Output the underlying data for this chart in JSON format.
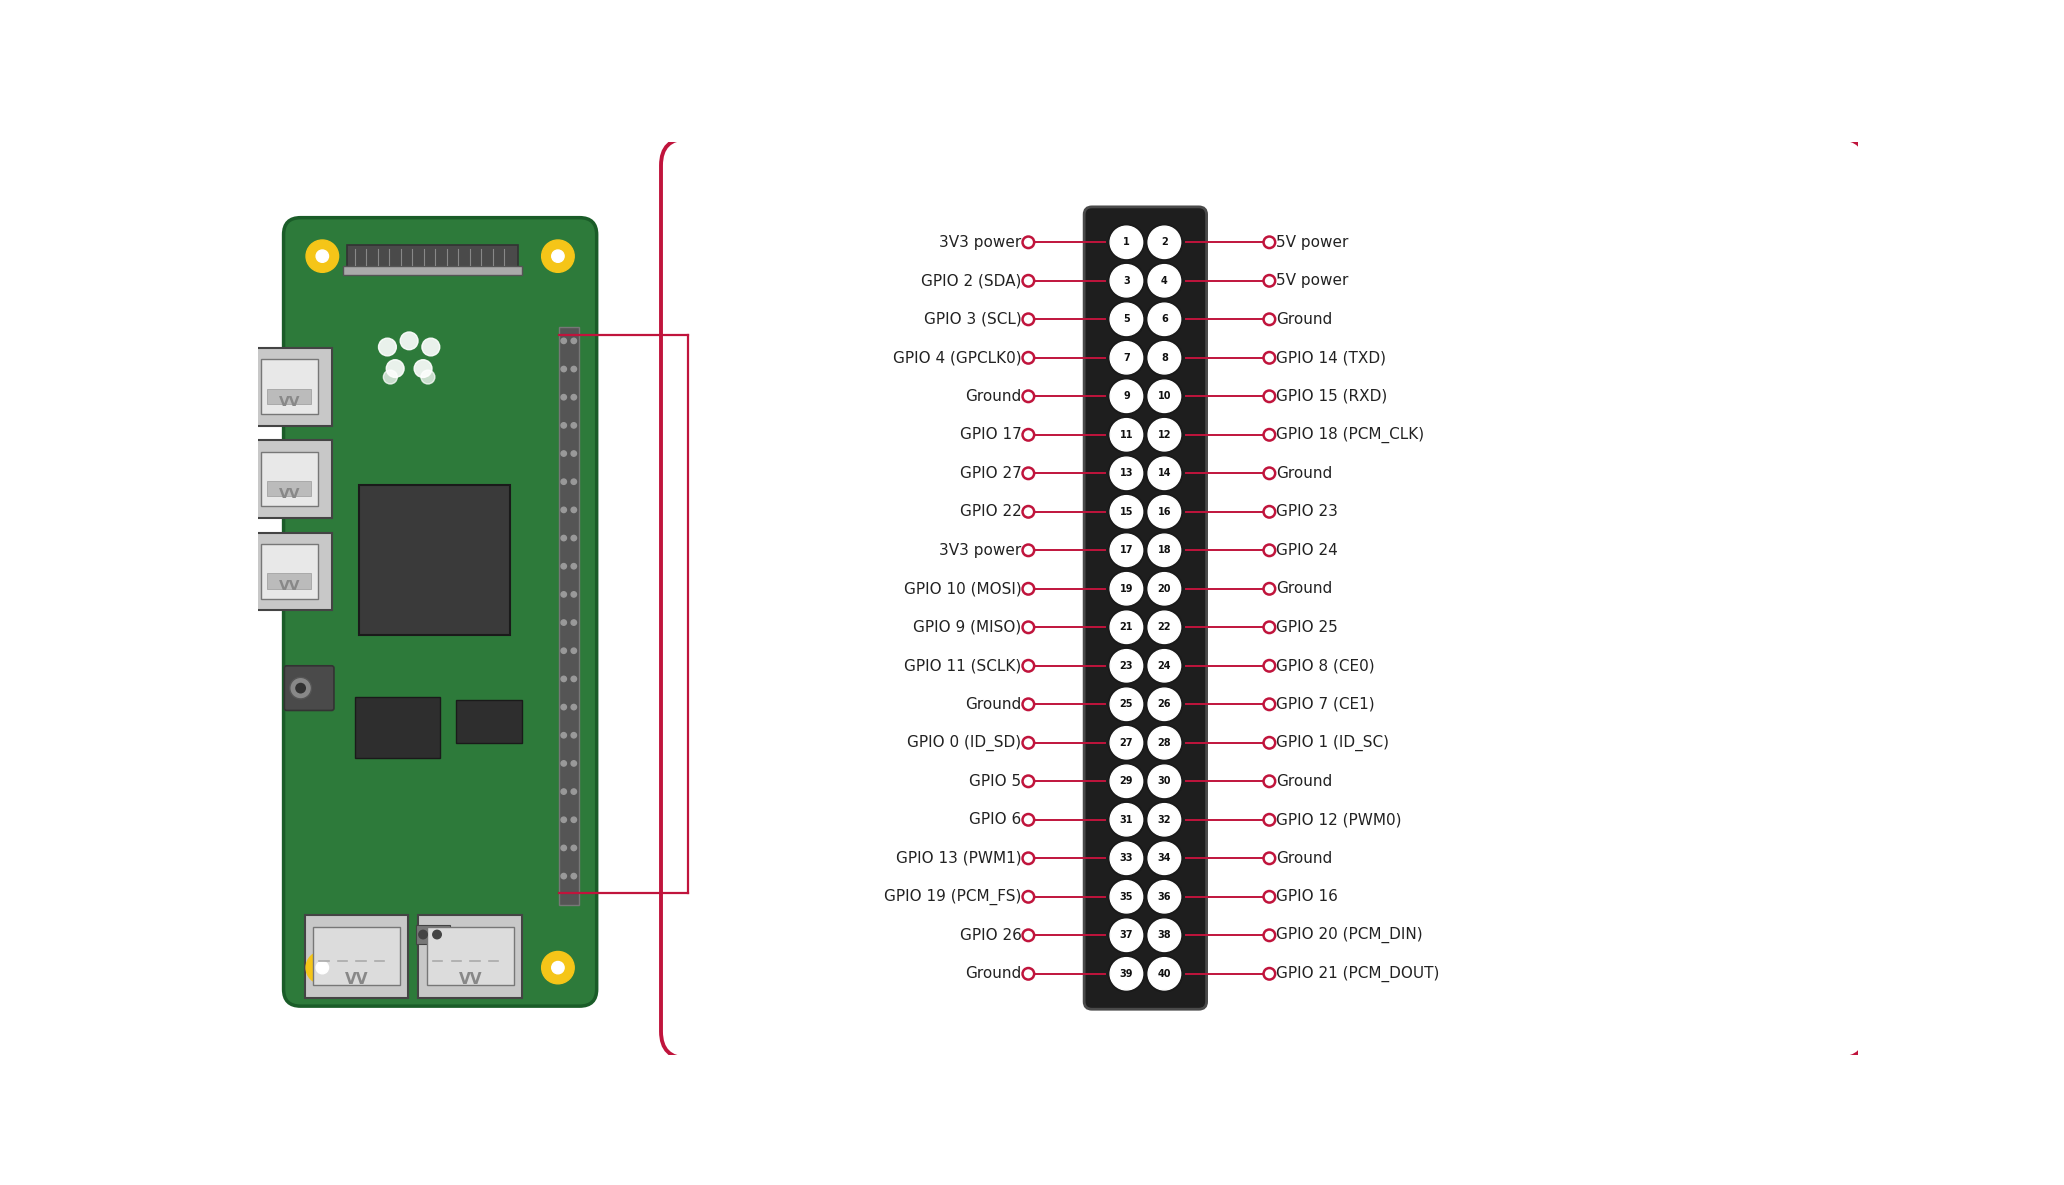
{
  "bg_color": "#ffffff",
  "board_color": "#2d7a3a",
  "board_border_color": "#1a5c28",
  "line_color": "#c0143c",
  "dot_color": "#c0143c",
  "label_color": "#222222",
  "box_border_color": "#c0143c",
  "box_fill_color": "#ffffff",
  "yellow_color": "#f5c518",
  "rows": 20,
  "left_labels": [
    "3V3 power",
    "GPIO 2 (SDA)",
    "GPIO 3 (SCL)",
    "GPIO 4 (GPCLK0)",
    "Ground",
    "GPIO 17",
    "GPIO 27",
    "GPIO 22",
    "3V3 power",
    "GPIO 10 (MOSI)",
    "GPIO 9 (MISO)",
    "GPIO 11 (SCLK)",
    "Ground",
    "GPIO 0 (ID_SD)",
    "GPIO 5",
    "GPIO 6",
    "GPIO 13 (PWM1)",
    "GPIO 19 (PCM_FS)",
    "GPIO 26",
    "Ground"
  ],
  "right_labels": [
    "5V power",
    "5V power",
    "Ground",
    "GPIO 14 (TXD)",
    "GPIO 15 (RXD)",
    "GPIO 18 (PCM_CLK)",
    "Ground",
    "GPIO 23",
    "GPIO 24",
    "Ground",
    "GPIO 25",
    "GPIO 8 (CE0)",
    "GPIO 7 (CE1)",
    "GPIO 1 (ID_SC)",
    "Ground",
    "GPIO 12 (PWM0)",
    "Ground",
    "GPIO 16",
    "GPIO 20 (PCM_DIN)",
    "GPIO 21 (PCM_DOUT)"
  ],
  "left_pin_nums": [
    1,
    3,
    5,
    7,
    9,
    11,
    13,
    15,
    17,
    19,
    21,
    23,
    25,
    27,
    29,
    31,
    33,
    35,
    37,
    39
  ],
  "right_pin_nums": [
    2,
    4,
    6,
    8,
    10,
    12,
    14,
    16,
    18,
    20,
    22,
    24,
    26,
    28,
    30,
    32,
    34,
    36,
    38,
    40
  ]
}
